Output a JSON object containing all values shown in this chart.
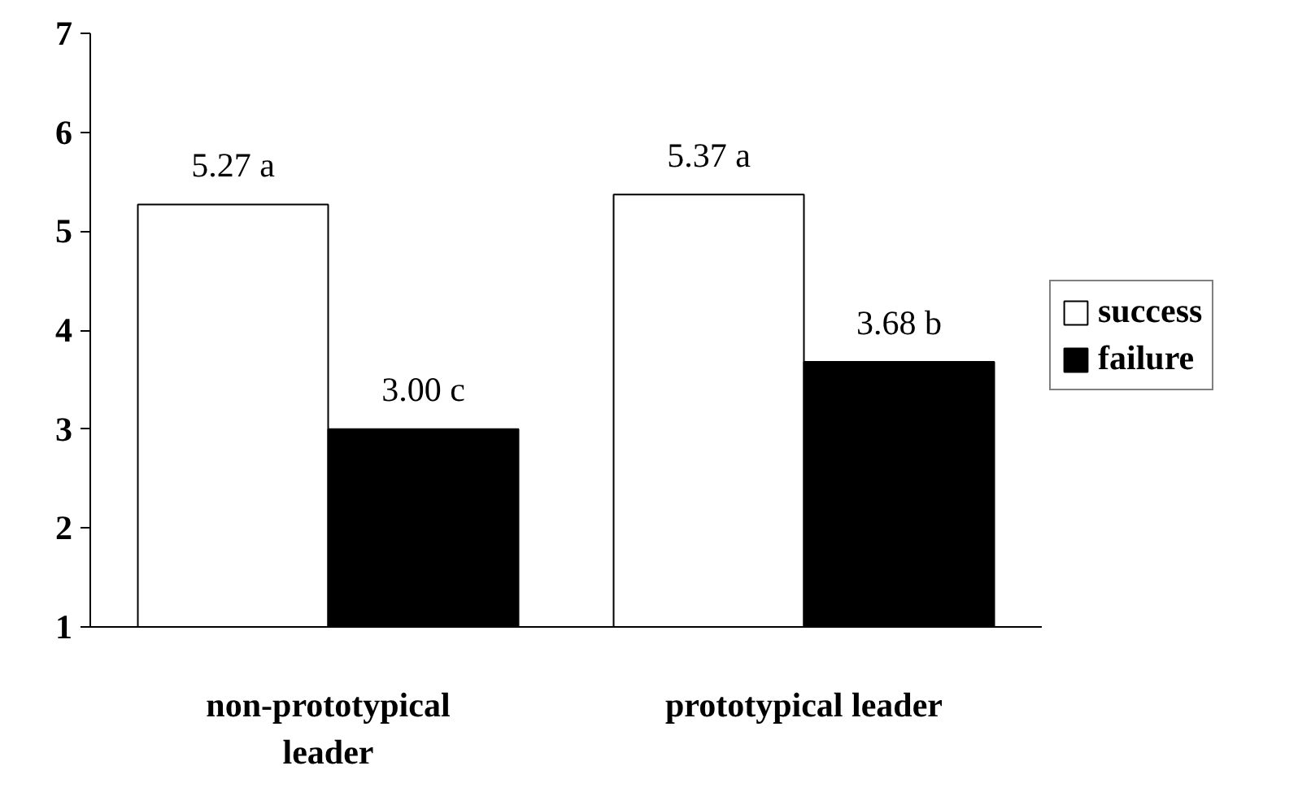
{
  "chart_data": {
    "type": "bar",
    "categories": [
      "non-prototypical\nleader",
      "prototypical leader"
    ],
    "series": [
      {
        "name": "success",
        "color": "#ffffff",
        "values": [
          5.27,
          5.37
        ],
        "value_labels": [
          "5.27 a",
          "5.37 a"
        ]
      },
      {
        "name": "failure",
        "color": "#000000",
        "values": [
          3.0,
          3.68
        ],
        "value_labels": [
          "3.00 c",
          "3.68 b"
        ]
      }
    ],
    "ylim": [
      1,
      7
    ],
    "yticks": [
      1,
      2,
      3,
      4,
      5,
      6,
      7
    ],
    "grid": false,
    "legend": "right"
  }
}
